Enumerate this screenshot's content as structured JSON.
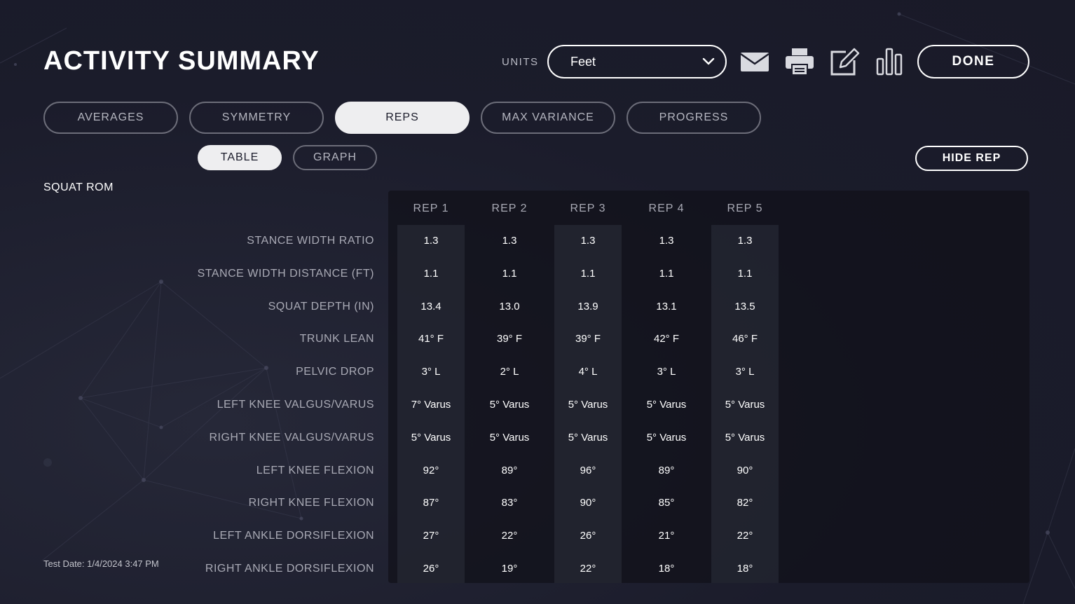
{
  "header": {
    "title": "ACTIVITY SUMMARY",
    "units_label": "UNITS",
    "units_value": "Feet",
    "done_label": "DONE"
  },
  "icons": {
    "email": "email-icon",
    "print": "printer-icon",
    "edit": "edit-icon",
    "chart": "bar-chart-icon",
    "dropdown": "chevron-down-icon"
  },
  "tabs": [
    {
      "label": "AVERAGES",
      "active": false
    },
    {
      "label": "SYMMETRY",
      "active": false
    },
    {
      "label": "REPS",
      "active": true
    },
    {
      "label": "MAX VARIANCE",
      "active": false
    },
    {
      "label": "PROGRESS",
      "active": false
    }
  ],
  "view_toggle": [
    {
      "label": "TABLE",
      "active": true
    },
    {
      "label": "GRAPH",
      "active": false
    }
  ],
  "hide_rep_label": "HIDE REP",
  "section_title": "SQUAT ROM",
  "table": {
    "row_labels": [
      "STANCE WIDTH RATIO",
      "STANCE WIDTH DISTANCE (FT)",
      "SQUAT DEPTH (IN)",
      "TRUNK LEAN",
      "PELVIC DROP",
      "LEFT KNEE VALGUS/VARUS",
      "RIGHT KNEE VALGUS/VARUS",
      "LEFT KNEE FLEXION",
      "RIGHT KNEE FLEXION",
      "LEFT ANKLE DORSIFLEXION",
      "RIGHT ANKLE DORSIFLEXION"
    ],
    "columns": [
      {
        "header": "REP 1",
        "values": [
          "1.3",
          "1.1",
          "13.4",
          "41° F",
          "3° L",
          "7° Varus",
          "5° Varus",
          "92°",
          "87°",
          "27°",
          "26°"
        ]
      },
      {
        "header": "REP 2",
        "values": [
          "1.3",
          "1.1",
          "13.0",
          "39° F",
          "2° L",
          "5° Varus",
          "5° Varus",
          "89°",
          "83°",
          "22°",
          "19°"
        ]
      },
      {
        "header": "REP 3",
        "values": [
          "1.3",
          "1.1",
          "13.9",
          "39° F",
          "4° L",
          "5° Varus",
          "5° Varus",
          "96°",
          "90°",
          "26°",
          "22°"
        ]
      },
      {
        "header": "REP 4",
        "values": [
          "1.3",
          "1.1",
          "13.1",
          "42° F",
          "3° L",
          "5° Varus",
          "5° Varus",
          "89°",
          "85°",
          "21°",
          "18°"
        ]
      },
      {
        "header": "REP 5",
        "values": [
          "1.3",
          "1.1",
          "13.5",
          "46° F",
          "3° L",
          "5° Varus",
          "5° Varus",
          "90°",
          "82°",
          "22°",
          "18°"
        ]
      }
    ]
  },
  "footer": {
    "test_date": "Test Date: 1/4/2024 3:47 PM"
  },
  "colors": {
    "background": "#1b1c2b",
    "panel": "#101119",
    "column_shade": "#262834",
    "active_tab": "#eeeef0",
    "muted_text": "#a9aab5"
  }
}
